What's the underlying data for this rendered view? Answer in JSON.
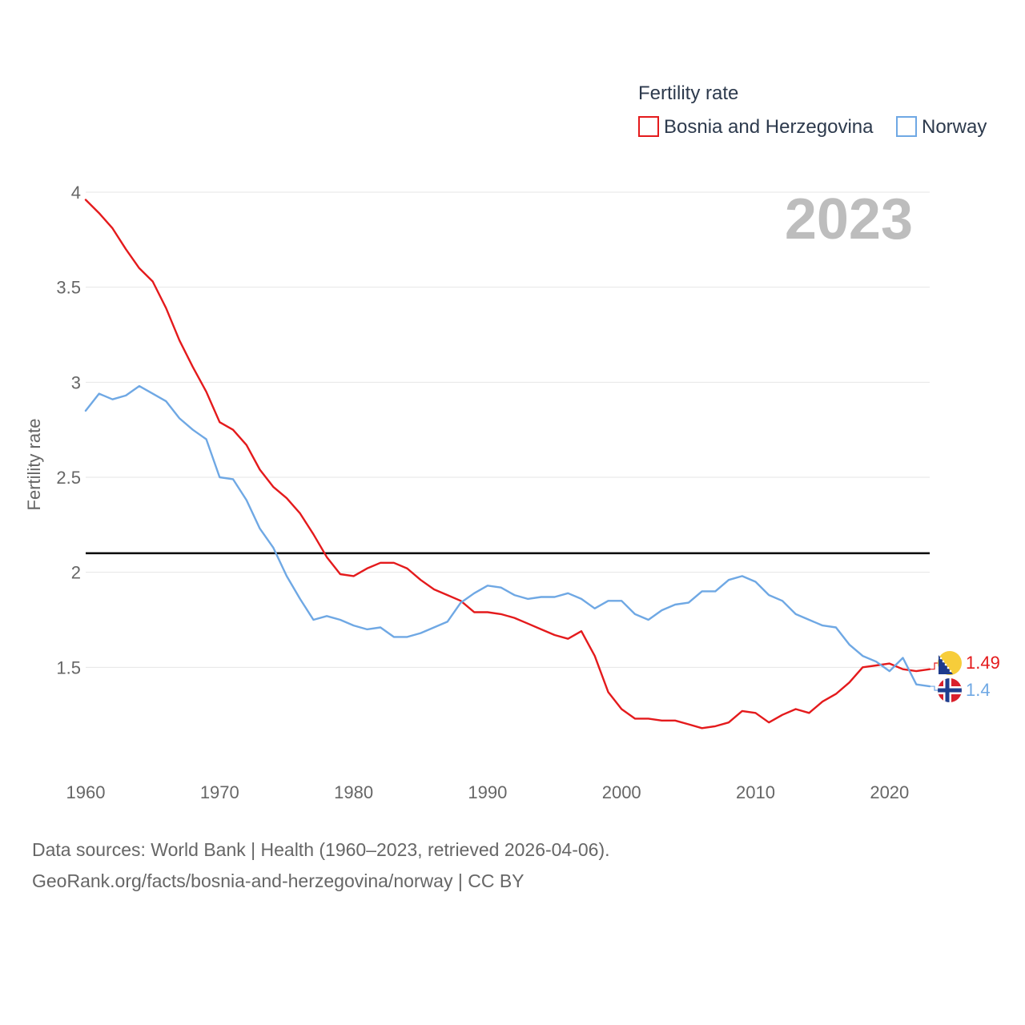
{
  "chart_data": {
    "type": "line",
    "title": "",
    "legend_title": "Fertility rate",
    "ylabel": "Fertility rate",
    "xlabel": "",
    "year_label": "2023",
    "xlim": [
      1960,
      2023
    ],
    "ylim": [
      1.0,
      4.0
    ],
    "x_ticks": [
      1960,
      1970,
      1980,
      1990,
      2000,
      2010,
      2020
    ],
    "y_ticks": [
      1.5,
      2,
      2.5,
      3,
      3.5,
      4
    ],
    "y_tick_labels": [
      "1.5",
      "2",
      "2.5",
      "3",
      "3.5",
      "4"
    ],
    "reference_line": {
      "y": 2.1,
      "color": "#000000"
    },
    "x": [
      1960,
      1961,
      1962,
      1963,
      1964,
      1965,
      1966,
      1967,
      1968,
      1969,
      1970,
      1971,
      1972,
      1973,
      1974,
      1975,
      1976,
      1977,
      1978,
      1979,
      1980,
      1981,
      1982,
      1983,
      1984,
      1985,
      1986,
      1987,
      1988,
      1989,
      1990,
      1991,
      1992,
      1993,
      1994,
      1995,
      1996,
      1997,
      1998,
      1999,
      2000,
      2001,
      2002,
      2003,
      2004,
      2005,
      2006,
      2007,
      2008,
      2009,
      2010,
      2011,
      2012,
      2013,
      2014,
      2015,
      2016,
      2017,
      2018,
      2019,
      2020,
      2021,
      2022,
      2023
    ],
    "series": [
      {
        "name": "Bosnia and Herzegovina",
        "color": "#e41a1c",
        "end_label": "1.49",
        "values": [
          3.96,
          3.89,
          3.81,
          3.7,
          3.6,
          3.53,
          3.39,
          3.22,
          3.08,
          2.95,
          2.79,
          2.75,
          2.67,
          2.54,
          2.45,
          2.39,
          2.31,
          2.2,
          2.08,
          1.99,
          1.98,
          2.02,
          2.05,
          2.05,
          2.02,
          1.96,
          1.91,
          1.88,
          1.85,
          1.79,
          1.79,
          1.78,
          1.76,
          1.73,
          1.7,
          1.67,
          1.65,
          1.69,
          1.56,
          1.37,
          1.28,
          1.23,
          1.23,
          1.22,
          1.22,
          1.2,
          1.18,
          1.19,
          1.21,
          1.27,
          1.26,
          1.21,
          1.25,
          1.28,
          1.26,
          1.32,
          1.36,
          1.42,
          1.5,
          1.51,
          1.52,
          1.49,
          1.48,
          1.49
        ]
      },
      {
        "name": "Norway",
        "color": "#6fa8e4",
        "end_label": "1.4",
        "values": [
          2.85,
          2.94,
          2.91,
          2.93,
          2.98,
          2.94,
          2.9,
          2.81,
          2.75,
          2.7,
          2.5,
          2.49,
          2.38,
          2.23,
          2.13,
          1.98,
          1.86,
          1.75,
          1.77,
          1.75,
          1.72,
          1.7,
          1.71,
          1.66,
          1.66,
          1.68,
          1.71,
          1.74,
          1.84,
          1.89,
          1.93,
          1.92,
          1.88,
          1.86,
          1.87,
          1.87,
          1.89,
          1.86,
          1.81,
          1.85,
          1.85,
          1.78,
          1.75,
          1.8,
          1.83,
          1.84,
          1.9,
          1.9,
          1.96,
          1.98,
          1.95,
          1.88,
          1.85,
          1.78,
          1.75,
          1.72,
          1.71,
          1.62,
          1.56,
          1.53,
          1.48,
          1.55,
          1.41,
          1.4
        ]
      }
    ]
  },
  "footer": {
    "line1": "Data sources: World Bank | Health (1960–2023, retrieved 2026-04-06).",
    "line2": "GeoRank.org/facts/bosnia-and-herzegovina/norway | CC BY"
  }
}
